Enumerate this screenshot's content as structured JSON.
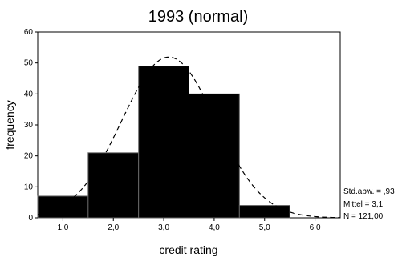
{
  "chart_data": {
    "type": "bar",
    "title": "1993   (normal)",
    "xlabel": "credit rating",
    "ylabel": "frequency",
    "bins": [
      {
        "start": 0.5,
        "end": 1.5,
        "value": 7
      },
      {
        "start": 1.5,
        "end": 2.5,
        "value": 21
      },
      {
        "start": 2.5,
        "end": 3.5,
        "value": 49
      },
      {
        "start": 3.5,
        "end": 4.5,
        "value": 40
      },
      {
        "start": 4.5,
        "end": 5.5,
        "value": 4
      }
    ],
    "xlim": [
      0.5,
      6.5
    ],
    "ylim": [
      0,
      60
    ],
    "x_ticks": [
      {
        "value": 1.0,
        "label": "1,0"
      },
      {
        "value": 2.0,
        "label": "2,0"
      },
      {
        "value": 3.0,
        "label": "3,0"
      },
      {
        "value": 4.0,
        "label": "4,0"
      },
      {
        "value": 5.0,
        "label": "5,0"
      },
      {
        "value": 6.0,
        "label": "6,0"
      }
    ],
    "y_ticks": [
      0,
      10,
      20,
      30,
      40,
      50,
      60
    ],
    "normal_curve": {
      "style": "dashed",
      "mean": 3.1,
      "std": 0.93,
      "n": 121
    },
    "stats": [
      "Std.abw. = ,93",
      "Mittel = 3,1",
      "N = 121,00"
    ],
    "grid": false,
    "bar_color": "#000000",
    "bar_edge_color": "#666666",
    "curve_color": "#000000"
  }
}
